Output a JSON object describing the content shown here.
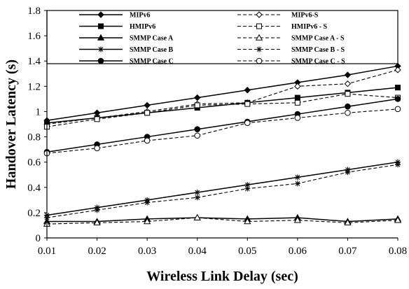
{
  "chart_data": {
    "type": "line",
    "xlabel": "Wireless Link Delay (sec)",
    "ylabel": "Handover Latency (s)",
    "xlim": [
      0.01,
      0.08
    ],
    "ylim": [
      0,
      1.8
    ],
    "x_ticks": [
      "0.01",
      "0.02",
      "0.03",
      "0.04",
      "0.05",
      "0.06",
      "0.07",
      "0.08"
    ],
    "y_ticks": [
      "0",
      "0.2",
      "0.4",
      "0.6",
      "0.8",
      "1",
      "1.2",
      "1.4",
      "1.6",
      "1.8"
    ],
    "grid": false,
    "legend_position": "top",
    "x": [
      0.01,
      0.02,
      0.03,
      0.04,
      0.05,
      0.06,
      0.07,
      0.08
    ],
    "series": [
      {
        "name": "MIPv6",
        "line": "solid",
        "marker": "diamond",
        "fill": "#000000",
        "values": [
          0.93,
          0.99,
          1.05,
          1.11,
          1.17,
          1.23,
          1.29,
          1.36
        ]
      },
      {
        "name": "MIPv6-S",
        "line": "dashed",
        "marker": "diamond",
        "fill": "#ffffff",
        "values": [
          0.9,
          0.95,
          1.0,
          1.06,
          1.07,
          1.2,
          1.22,
          1.33
        ]
      },
      {
        "name": "HMIPv6",
        "line": "solid",
        "marker": "square",
        "fill": "#000000",
        "values": [
          0.91,
          0.95,
          0.99,
          1.03,
          1.07,
          1.11,
          1.15,
          1.19
        ]
      },
      {
        "name": "HMIPv6 - S",
        "line": "dashed",
        "marker": "square",
        "fill": "#ffffff",
        "values": [
          0.88,
          0.94,
          0.99,
          1.05,
          1.06,
          1.07,
          1.14,
          1.11
        ]
      },
      {
        "name": "SMMP Case A",
        "line": "solid",
        "marker": "triangle",
        "fill": "#000000",
        "values": [
          0.13,
          0.13,
          0.15,
          0.16,
          0.15,
          0.16,
          0.13,
          0.15
        ]
      },
      {
        "name": "SMMP Case A - S",
        "line": "dashed",
        "marker": "triangle",
        "fill": "#ffffff",
        "values": [
          0.11,
          0.12,
          0.13,
          0.16,
          0.13,
          0.14,
          0.12,
          0.14
        ]
      },
      {
        "name": "SMMP Case B",
        "line": "solid",
        "marker": "star",
        "fill": "#000000",
        "values": [
          0.18,
          0.24,
          0.3,
          0.36,
          0.42,
          0.48,
          0.54,
          0.6
        ]
      },
      {
        "name": "SMMP Case B - S",
        "line": "dashed",
        "marker": "star",
        "fill": "#000000",
        "values": [
          0.16,
          0.22,
          0.28,
          0.32,
          0.39,
          0.43,
          0.52,
          0.58
        ]
      },
      {
        "name": "SMMP Case C",
        "line": "solid",
        "marker": "circle",
        "fill": "#000000",
        "values": [
          0.68,
          0.74,
          0.8,
          0.86,
          0.92,
          0.98,
          1.04,
          1.1
        ]
      },
      {
        "name": "SMMP Case C - S",
        "line": "dashed",
        "marker": "circle",
        "fill": "#ffffff",
        "values": [
          0.67,
          0.71,
          0.77,
          0.81,
          0.91,
          0.95,
          0.99,
          1.02
        ]
      }
    ]
  }
}
